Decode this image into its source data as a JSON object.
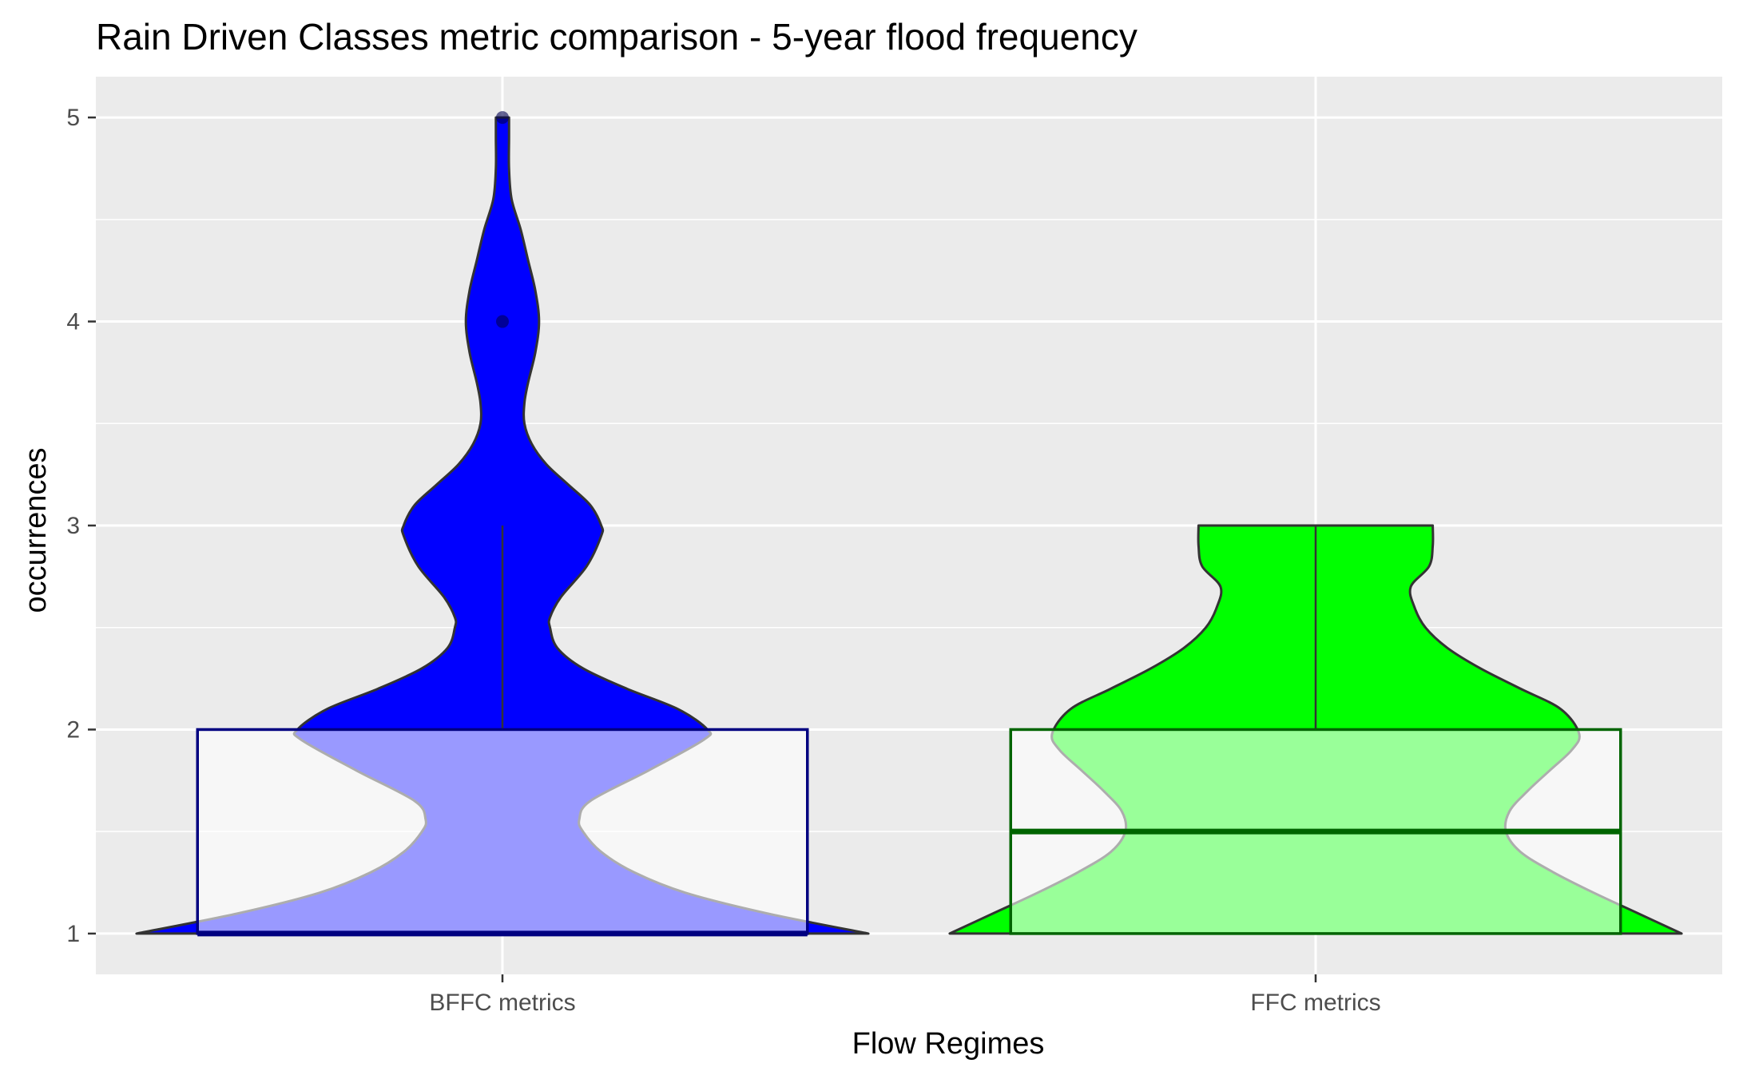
{
  "chart_data": {
    "type": "violin",
    "title": "Rain Driven Classes metric comparison - 5-year flood frequency",
    "xlabel": "Flow Regimes",
    "ylabel": "occurrences",
    "categories": [
      "BFFC metrics",
      "FFC metrics"
    ],
    "ylim": [
      0.8,
      5.2
    ],
    "yticks": [
      1,
      2,
      3,
      4,
      5
    ],
    "ytick_labels": [
      "1",
      "2",
      "3",
      "4",
      "5"
    ],
    "grid": true,
    "legend": "none",
    "series": [
      {
        "category": "BFFC metrics",
        "fill": "#0000ff",
        "box_color": "#000080",
        "box": {
          "min": 1,
          "q1": 1,
          "median": 1,
          "q3": 2,
          "max": 3
        },
        "outliers": [
          4,
          5
        ],
        "density": [
          [
            1.0,
            1.0
          ],
          [
            1.1,
            0.72
          ],
          [
            1.2,
            0.5
          ],
          [
            1.3,
            0.36
          ],
          [
            1.4,
            0.27
          ],
          [
            1.5,
            0.22
          ],
          [
            1.56,
            0.21
          ],
          [
            1.65,
            0.24
          ],
          [
            1.8,
            0.4
          ],
          [
            1.95,
            0.55
          ],
          [
            2.0,
            0.56
          ],
          [
            2.1,
            0.48
          ],
          [
            2.2,
            0.34
          ],
          [
            2.3,
            0.22
          ],
          [
            2.4,
            0.15
          ],
          [
            2.5,
            0.13
          ],
          [
            2.55,
            0.13
          ],
          [
            2.65,
            0.16
          ],
          [
            2.8,
            0.23
          ],
          [
            2.95,
            0.27
          ],
          [
            3.0,
            0.27
          ],
          [
            3.1,
            0.24
          ],
          [
            3.2,
            0.18
          ],
          [
            3.3,
            0.12
          ],
          [
            3.4,
            0.08
          ],
          [
            3.5,
            0.06
          ],
          [
            3.6,
            0.06
          ],
          [
            3.7,
            0.07
          ],
          [
            3.85,
            0.09
          ],
          [
            4.0,
            0.1
          ],
          [
            4.15,
            0.09
          ],
          [
            4.3,
            0.07
          ],
          [
            4.45,
            0.05
          ],
          [
            4.6,
            0.025
          ],
          [
            4.75,
            0.018
          ],
          [
            4.9,
            0.018
          ],
          [
            5.0,
            0.018
          ]
        ]
      },
      {
        "category": "FFC metrics",
        "fill": "#00ff00",
        "box_color": "#006400",
        "box": {
          "min": 1,
          "q1": 1,
          "median": 1.5,
          "q3": 2,
          "max": 3
        },
        "outliers": [],
        "density": [
          [
            1.0,
            1.0
          ],
          [
            1.1,
            0.88
          ],
          [
            1.2,
            0.76
          ],
          [
            1.3,
            0.65
          ],
          [
            1.4,
            0.56
          ],
          [
            1.5,
            0.52
          ],
          [
            1.6,
            0.53
          ],
          [
            1.7,
            0.58
          ],
          [
            1.8,
            0.64
          ],
          [
            1.9,
            0.7
          ],
          [
            1.98,
            0.72
          ],
          [
            2.1,
            0.67
          ],
          [
            2.2,
            0.56
          ],
          [
            2.3,
            0.45
          ],
          [
            2.4,
            0.36
          ],
          [
            2.5,
            0.3
          ],
          [
            2.6,
            0.27
          ],
          [
            2.7,
            0.26
          ],
          [
            2.8,
            0.31
          ],
          [
            2.9,
            0.32
          ],
          [
            3.0,
            0.32
          ]
        ]
      }
    ]
  }
}
